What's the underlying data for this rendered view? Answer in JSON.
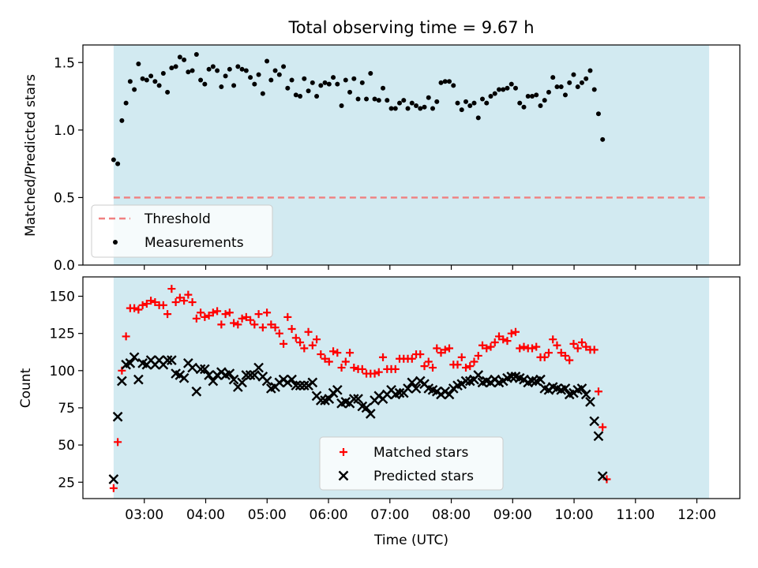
{
  "title": "Total observing time = 9.67 h",
  "colors": {
    "span": "#add8e6",
    "threshold": "#f08080",
    "matched": "#ff0000",
    "predicted": "#000000",
    "measure": "#000000"
  },
  "chart_data": [
    {
      "type": "scatter",
      "ylabel": "Matched/Predicted stars",
      "xlim": [
        2.0,
        12.7
      ],
      "ylim": [
        0,
        1.63
      ],
      "yticks": [
        "0.0",
        "0.5",
        "1.0",
        "1.5"
      ],
      "span_hours": [
        2.5,
        12.2
      ],
      "threshold": 0.5,
      "legend": {
        "threshold_label": "Threshold",
        "measure_label": "Measurements",
        "position": "lower-left"
      },
      "x_step_hours": 0.0675,
      "x0_hours": 2.5,
      "series": [
        {
          "name": "Measurements",
          "values": [
            0.78,
            0.75,
            1.07,
            1.2,
            1.36,
            1.3,
            1.49,
            1.38,
            1.37,
            1.4,
            1.36,
            1.33,
            1.42,
            1.28,
            1.46,
            1.47,
            1.54,
            1.52,
            1.43,
            1.44,
            1.56,
            1.37,
            1.34,
            1.45,
            1.47,
            1.44,
            1.32,
            1.4,
            1.45,
            1.33,
            1.47,
            1.45,
            1.44,
            1.39,
            1.34,
            1.41,
            1.27,
            1.51,
            1.37,
            1.44,
            1.41,
            1.47,
            1.31,
            1.37,
            1.26,
            1.25,
            1.38,
            1.29,
            1.35,
            1.25,
            1.33,
            1.35,
            1.34,
            1.39,
            1.34,
            1.18,
            1.37,
            1.28,
            1.38,
            1.23,
            1.35,
            1.23,
            1.42,
            1.23,
            1.22,
            1.31,
            1.22,
            1.16,
            1.16,
            1.2,
            1.22,
            1.16,
            1.2,
            1.18,
            1.16,
            1.17,
            1.24,
            1.16,
            1.21,
            1.35,
            1.36,
            1.36,
            1.33,
            1.2,
            1.15,
            1.21,
            1.18,
            1.2,
            1.09,
            1.23,
            1.2,
            1.25,
            1.27,
            1.3,
            1.3,
            1.31,
            1.34,
            1.31,
            1.2,
            1.17,
            1.25,
            1.25,
            1.26,
            1.18,
            1.22,
            1.28,
            1.39,
            1.32,
            1.32,
            1.26,
            1.35,
            1.41,
            1.32,
            1.35,
            1.38,
            1.44,
            1.3,
            1.12,
            0.93
          ]
        }
      ]
    },
    {
      "type": "scatter",
      "ylabel": "Count",
      "xlabel": "Time (UTC)",
      "xlim": [
        2.0,
        12.7
      ],
      "ylim": [
        14,
        163
      ],
      "yticks": [
        "25",
        "50",
        "75",
        "100",
        "125",
        "150"
      ],
      "xticks": [
        "03:00",
        "04:00",
        "05:00",
        "06:00",
        "07:00",
        "08:00",
        "09:00",
        "10:00",
        "11:00",
        "12:00"
      ],
      "span_hours": [
        2.5,
        12.2
      ],
      "legend": {
        "matched_label": "Matched stars",
        "predicted_label": "Predicted stars",
        "position": "lower-center"
      },
      "x_step_hours": 0.0675,
      "x0_hours": 2.5,
      "series": [
        {
          "name": "Matched stars",
          "values": [
            21,
            52,
            100,
            123,
            142,
            142,
            141,
            144,
            145,
            147,
            146,
            144,
            144,
            138,
            155,
            146,
            149,
            147,
            151,
            146,
            135,
            139,
            136,
            137,
            139,
            140,
            131,
            138,
            139,
            132,
            131,
            135,
            136,
            134,
            131,
            138,
            129,
            139,
            131,
            129,
            125,
            118,
            136,
            128,
            122,
            119,
            115,
            126,
            117,
            121,
            111,
            108,
            106,
            113,
            112,
            102,
            106,
            112,
            102,
            101,
            101,
            98,
            98,
            98,
            99,
            109,
            101,
            101,
            101,
            108,
            108,
            108,
            108,
            111,
            111,
            103,
            106,
            102,
            115,
            112,
            114,
            115,
            104,
            104,
            109,
            102,
            103,
            106,
            110,
            117,
            115,
            116,
            119,
            123,
            121,
            120,
            125,
            126,
            115,
            116,
            115,
            115,
            116,
            109,
            109,
            112,
            121,
            117,
            112,
            110,
            107,
            118,
            115,
            119,
            116,
            114,
            114,
            86,
            62,
            27
          ]
        },
        {
          "name": "Predicted stars",
          "values": [
            27,
            69,
            93,
            104,
            105,
            109,
            94,
            105,
            104,
            107,
            104,
            107,
            104,
            107,
            107,
            98,
            97,
            95,
            105,
            102,
            86,
            101,
            101,
            97,
            93,
            97,
            99,
            97,
            98,
            94,
            89,
            92,
            97,
            97,
            97,
            102,
            96,
            93,
            88,
            89,
            92,
            94,
            92,
            94,
            90,
            90,
            90,
            90,
            92,
            83,
            80,
            80,
            81,
            85,
            87,
            78,
            79,
            78,
            81,
            81,
            76,
            75,
            71,
            80,
            83,
            81,
            84,
            87,
            84,
            85,
            85,
            88,
            92,
            88,
            93,
            91,
            88,
            87,
            86,
            84,
            86,
            84,
            88,
            90,
            91,
            93,
            93,
            94,
            97,
            92,
            93,
            92,
            94,
            92,
            93,
            95,
            96,
            96,
            95,
            94,
            92,
            93,
            93,
            94,
            88,
            87,
            89,
            88,
            87,
            88,
            84,
            85,
            87,
            88,
            84,
            79,
            66,
            56,
            29
          ]
        }
      ]
    }
  ]
}
